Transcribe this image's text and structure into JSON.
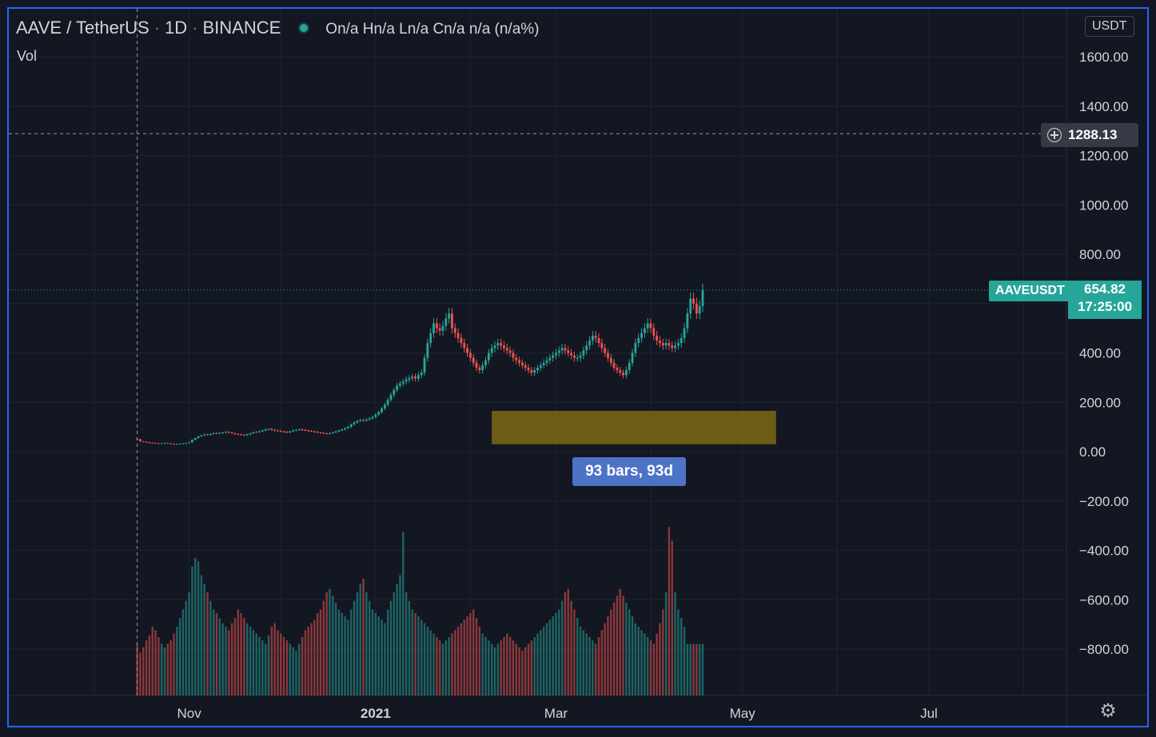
{
  "header": {
    "symbol": "AAVE / TetherUS",
    "interval": "1D",
    "exchange": "BINANCE",
    "ohlc": "On/a Hn/a Ln/a Cn/a n/a (n/a%)",
    "volume_label": "Vol",
    "currency": "USDT"
  },
  "measure": {
    "label": "93 bars, 93d",
    "color": "#b8960c"
  },
  "crosshair": {
    "price": "1288.13"
  },
  "last_price": {
    "ticker": "AAVEUSDT",
    "price": "654.82",
    "countdown": "17:25:00"
  },
  "colors": {
    "up": "#26a69a",
    "down": "#ef5350",
    "background": "#131722",
    "grid": "#1f2330",
    "axis_text": "#d1d4dc",
    "frame": "#2962ff"
  },
  "icons": {
    "settings": "gear-icon",
    "crosshair_add": "plus-circle-icon"
  },
  "chart_data": {
    "type": "candlestick",
    "title": "AAVE / TetherUS",
    "ylabel": "",
    "xlabel": "",
    "ylim": [
      -1000,
      1650
    ],
    "y_ticks": [
      "1600.00",
      "1400.00",
      "1200.00",
      "1000.00",
      "800.00",
      "400.00",
      "200.00",
      "0.00",
      "−200.00",
      "−400.00",
      "−600.00",
      "−800.00"
    ],
    "y_tick_values": [
      1600,
      1400,
      1200,
      1000,
      800,
      400,
      200,
      0,
      -200,
      -400,
      -600,
      -800
    ],
    "x_ticks": [
      "Nov",
      "2021",
      "Mar",
      "May",
      "Jul"
    ],
    "x_tick_dates": [
      "2020-11-01",
      "2021-01-01",
      "2021-03-01",
      "2021-05-01",
      "2021-07-01"
    ],
    "x_range": [
      "2020-09-03",
      "2021-08-15"
    ],
    "measure_range": {
      "x": [
        "2021-02-08",
        "2021-05-12"
      ],
      "y": [
        30,
        165
      ]
    },
    "crosshair_date": "2020-10-15",
    "crosshair_value": 1288.13,
    "last_value": 654.82,
    "grid": true,
    "close_series": {
      "start": "2020-10-15",
      "closes": [
        50,
        42,
        40,
        38,
        36,
        35,
        34,
        33,
        34,
        35,
        33,
        32,
        30,
        31,
        32,
        33,
        35,
        38,
        48,
        55,
        62,
        66,
        70,
        68,
        72,
        75,
        74,
        76,
        78,
        80,
        77,
        74,
        72,
        70,
        68,
        66,
        70,
        74,
        78,
        80,
        82,
        86,
        90,
        92,
        88,
        86,
        84,
        82,
        80,
        78,
        82,
        86,
        88,
        90,
        88,
        86,
        84,
        82,
        80,
        78,
        76,
        74,
        72,
        75,
        78,
        82,
        86,
        90,
        95,
        100,
        110,
        118,
        124,
        128,
        126,
        130,
        135,
        140,
        150,
        160,
        175,
        190,
        210,
        230,
        250,
        268,
        276,
        284,
        292,
        298,
        304,
        296,
        310,
        320,
        380,
        440,
        480,
        520,
        500,
        490,
        510,
        540,
        560,
        500,
        480,
        460,
        440,
        420,
        400,
        380,
        360,
        340,
        330,
        350,
        370,
        400,
        420,
        430,
        440,
        430,
        420,
        410,
        400,
        380,
        370,
        360,
        350,
        340,
        330,
        320,
        330,
        340,
        350,
        360,
        370,
        380,
        390,
        400,
        410,
        420,
        410,
        400,
        390,
        380,
        380,
        390,
        410,
        430,
        450,
        470,
        460,
        440,
        420,
        400,
        380,
        360,
        340,
        330,
        320,
        310,
        330,
        360,
        400,
        440,
        460,
        480,
        500,
        520,
        500,
        470,
        450,
        440,
        430,
        440,
        430,
        420,
        430,
        440,
        460,
        500,
        560,
        620,
        600,
        560,
        590,
        654.82
      ]
    },
    "volume": {
      "values": [
        0.3,
        0.25,
        0.28,
        0.32,
        0.35,
        0.4,
        0.38,
        0.34,
        0.3,
        0.28,
        0.3,
        0.32,
        0.36,
        0.4,
        0.45,
        0.5,
        0.55,
        0.6,
        0.75,
        0.8,
        0.78,
        0.7,
        0.65,
        0.6,
        0.55,
        0.5,
        0.48,
        0.45,
        0.42,
        0.4,
        0.38,
        0.42,
        0.45,
        0.5,
        0.48,
        0.45,
        0.42,
        0.4,
        0.38,
        0.36,
        0.34,
        0.32,
        0.3,
        0.35,
        0.4,
        0.42,
        0.38,
        0.36,
        0.34,
        0.32,
        0.3,
        0.28,
        0.26,
        0.3,
        0.34,
        0.38,
        0.4,
        0.42,
        0.44,
        0.48,
        0.5,
        0.55,
        0.6,
        0.62,
        0.58,
        0.54,
        0.5,
        0.48,
        0.46,
        0.44,
        0.5,
        0.55,
        0.6,
        0.65,
        0.68,
        0.6,
        0.55,
        0.5,
        0.48,
        0.46,
        0.44,
        0.42,
        0.5,
        0.55,
        0.6,
        0.65,
        0.7,
        0.95,
        0.6,
        0.55,
        0.5,
        0.48,
        0.46,
        0.44,
        0.42,
        0.4,
        0.38,
        0.36,
        0.34,
        0.32,
        0.3,
        0.32,
        0.34,
        0.36,
        0.38,
        0.4,
        0.42,
        0.44,
        0.46,
        0.48,
        0.5,
        0.45,
        0.4,
        0.36,
        0.34,
        0.32,
        0.3,
        0.28,
        0.3,
        0.32,
        0.34,
        0.36,
        0.34,
        0.32,
        0.3,
        0.28,
        0.26,
        0.28,
        0.3,
        0.32,
        0.34,
        0.36,
        0.38,
        0.4,
        0.42,
        0.44,
        0.46,
        0.48,
        0.5,
        0.55,
        0.6,
        0.62,
        0.55,
        0.5,
        0.45,
        0.4,
        0.38,
        0.36,
        0.34,
        0.32,
        0.3,
        0.34,
        0.38,
        0.42,
        0.46,
        0.5,
        0.54,
        0.58,
        0.62,
        0.58,
        0.54,
        0.5,
        0.46,
        0.42,
        0.4,
        0.38,
        0.36,
        0.34,
        0.32,
        0.3,
        0.36,
        0.42,
        0.5,
        0.6,
        0.98,
        0.9,
        0.6,
        0.5,
        0.45,
        0.4
      ]
    }
  }
}
